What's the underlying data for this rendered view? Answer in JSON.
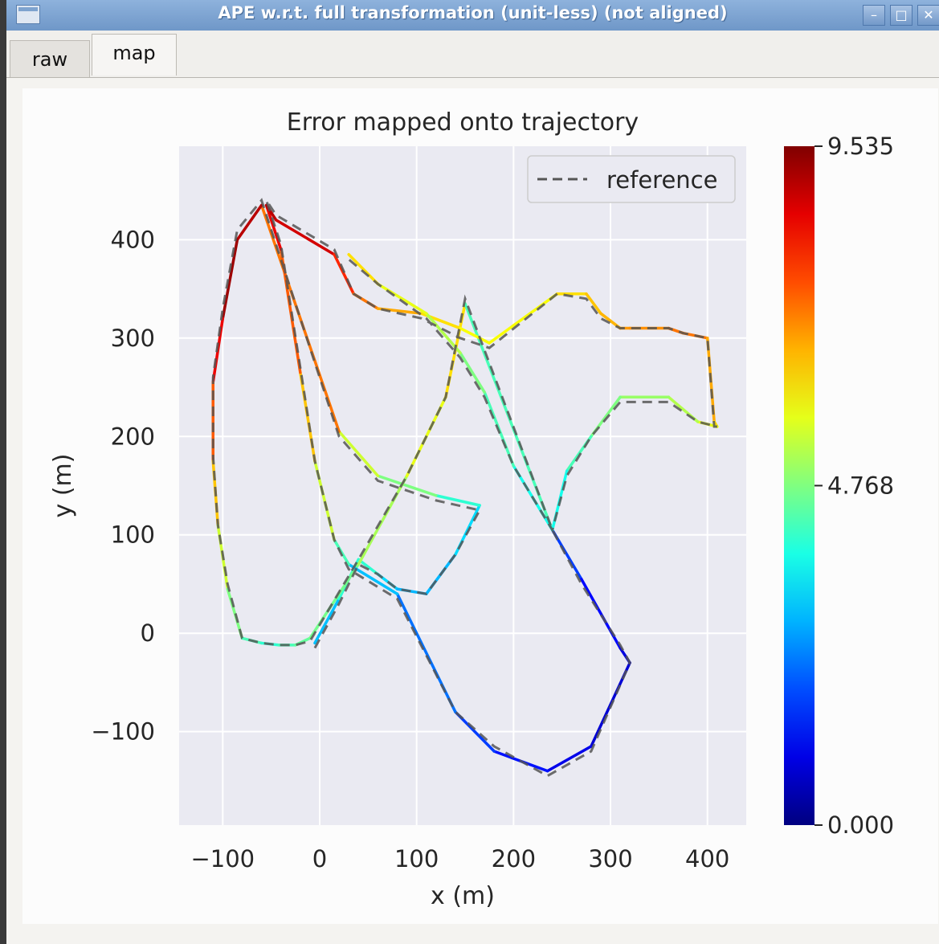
{
  "window": {
    "title": "APE w.r.t. full transformation (unit-less) (not aligned)",
    "icon": "app-window-icon",
    "controls": [
      "minimize",
      "maximize",
      "close"
    ]
  },
  "tabs": [
    {
      "label": "raw",
      "active": false
    },
    {
      "label": "map",
      "active": true
    }
  ],
  "colors": {
    "plot_background": "#eaeaf2",
    "grid": "#ffffff",
    "reference_line": "#555555",
    "colormap": "jet"
  },
  "chart_data": {
    "type": "line",
    "title": "Error mapped onto trajectory",
    "xlabel": "x (m)",
    "ylabel": "y (m)",
    "xlim": [
      -145,
      440
    ],
    "ylim": [
      -195,
      495
    ],
    "xticks": [
      -100,
      0,
      100,
      200,
      300,
      400
    ],
    "yticks": [
      -100,
      0,
      100,
      200,
      300,
      400
    ],
    "xtick_labels": [
      "−100",
      "0",
      "100",
      "200",
      "300",
      "400"
    ],
    "ytick_labels": [
      "−100",
      "0",
      "100",
      "200",
      "300",
      "400"
    ],
    "grid": true,
    "legend": {
      "position": "top-right",
      "entries": [
        "reference"
      ]
    },
    "colorbar": {
      "min": 0.0,
      "max": 9.535,
      "ticks": [
        0.0,
        4.768,
        9.535
      ],
      "tick_labels": [
        "0.000",
        "4.768",
        "9.535"
      ],
      "colormap": "jet"
    },
    "series": [
      {
        "name": "reference",
        "style": "dashed",
        "x": [
          -5,
          20,
          40,
          60,
          80,
          110,
          140,
          165,
          120,
          60,
          20,
          -60,
          -85,
          -100,
          -110,
          -110,
          -105,
          -95,
          -80,
          -60,
          -42,
          -25,
          -10,
          40,
          90,
          130,
          150,
          240,
          270,
          310,
          320,
          280,
          235,
          180,
          140,
          80,
          30,
          15,
          -5,
          -20,
          -40,
          -55,
          -45,
          15,
          35,
          60,
          105,
          145,
          175,
          245,
          275,
          290,
          310,
          320,
          360,
          375,
          400,
          407,
          410,
          390,
          360,
          310,
          280,
          255,
          240,
          200,
          170,
          145,
          110,
          60,
          30
        ],
        "y": [
          -15,
          30,
          70,
          60,
          45,
          40,
          80,
          125,
          135,
          155,
          200,
          440,
          410,
          330,
          260,
          180,
          110,
          50,
          -5,
          -10,
          -12,
          -12,
          -8,
          75,
          160,
          240,
          340,
          105,
          50,
          -12,
          -30,
          -120,
          -145,
          -115,
          -80,
          35,
          65,
          95,
          175,
          270,
          395,
          440,
          425,
          390,
          345,
          330,
          320,
          300,
          290,
          345,
          340,
          320,
          310,
          310,
          310,
          305,
          300,
          210,
          210,
          215,
          235,
          235,
          200,
          160,
          105,
          170,
          240,
          280,
          320,
          355,
          380
        ]
      },
      {
        "name": "",
        "style": "colored-by-error",
        "x": [
          -5,
          20,
          40,
          60,
          80,
          110,
          140,
          165,
          120,
          60,
          20,
          -60,
          -85,
          -100,
          -110,
          -110,
          -105,
          -95,
          -80,
          -60,
          -42,
          -25,
          -10,
          40,
          90,
          130,
          150,
          240,
          270,
          310,
          320,
          280,
          235,
          180,
          140,
          80,
          30,
          15,
          -5,
          -20,
          -40,
          -55,
          -45,
          15,
          35,
          60,
          105,
          145,
          175,
          245,
          275,
          290,
          310,
          320,
          360,
          375,
          400,
          407,
          410,
          390,
          360,
          310,
          280,
          255,
          240,
          200,
          170,
          145,
          110,
          60,
          30
        ],
        "y": [
          -10,
          35,
          75,
          60,
          45,
          40,
          80,
          130,
          140,
          160,
          205,
          435,
          400,
          320,
          255,
          175,
          110,
          45,
          -5,
          -10,
          -12,
          -12,
          -5,
          70,
          160,
          240,
          335,
          105,
          55,
          -15,
          -30,
          -115,
          -140,
          -120,
          -80,
          40,
          70,
          95,
          175,
          265,
          390,
          435,
          420,
          385,
          345,
          330,
          325,
          310,
          295,
          345,
          345,
          325,
          310,
          310,
          310,
          305,
          300,
          215,
          210,
          215,
          240,
          240,
          200,
          165,
          105,
          170,
          245,
          285,
          325,
          355,
          385
        ],
        "error": [
          2.5,
          3.5,
          4.5,
          3.5,
          3.0,
          2.8,
          3.0,
          3.5,
          4.5,
          5.0,
          6.0,
          8.5,
          9.5,
          9.0,
          8.0,
          7.0,
          6.0,
          5.0,
          4.5,
          4.0,
          4.0,
          4.5,
          4.5,
          4.8,
          5.5,
          6.0,
          6.5,
          2.0,
          1.5,
          1.0,
          0.8,
          0.8,
          1.2,
          1.5,
          2.0,
          2.5,
          3.5,
          5.0,
          6.0,
          7.0,
          8.0,
          9.0,
          9.0,
          8.5,
          7.5,
          7.0,
          6.5,
          6.0,
          5.8,
          6.0,
          6.5,
          6.5,
          6.8,
          7.0,
          7.0,
          7.5,
          7.0,
          6.5,
          6.0,
          5.5,
          5.0,
          5.0,
          4.5,
          4.0,
          3.5,
          4.0,
          4.5,
          5.0,
          5.5,
          6.0,
          6.5
        ]
      }
    ]
  }
}
